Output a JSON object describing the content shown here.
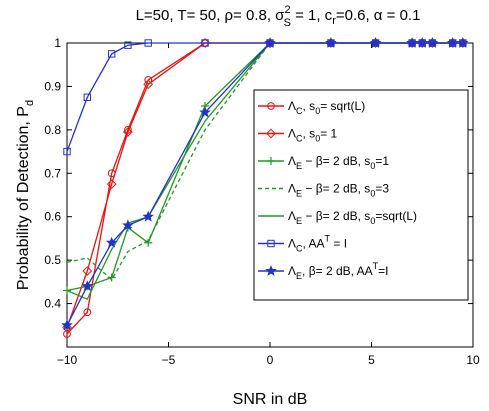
{
  "chart_data": {
    "type": "line",
    "title": "L=50, T= 50, ρ= 0.8, σ",
    "title_sup": "2",
    "title_sub": "S",
    "title_rest": " = 1, c",
    "title_sub2": "r",
    "title_end": "=0.6, α = 0.1",
    "xlabel": "SNR in dB",
    "ylabel": "Probability of Detection, P",
    "ylabel_sub": "d",
    "xlim": [
      -10,
      10
    ],
    "ylim": [
      0.3,
      1.0
    ],
    "grid": false,
    "legend_position": "middle-right",
    "xticks": [
      -10,
      -5,
      0,
      5,
      10
    ],
    "yticks": [
      0.4,
      0.5,
      0.6,
      0.7,
      0.8,
      0.9,
      1
    ],
    "series": [
      {
        "name": "Λ",
        "sub": "C",
        "rest": ", s",
        "sub2": "0",
        "rest2": "= sqrt(L)",
        "color": "#ee1111",
        "marker": "circle",
        "dash": "solid",
        "x": [
          -10,
          -9,
          -7.8,
          -7,
          -6,
          -3.2,
          0,
          3,
          5.2,
          7,
          7.5,
          8,
          9,
          9.5
        ],
        "y": [
          0.33,
          0.38,
          0.7,
          0.8,
          0.915,
          1,
          1,
          1,
          1,
          1,
          1,
          1,
          1,
          1
        ]
      },
      {
        "name": "Λ",
        "sub": "C",
        "rest": ", s",
        "sub2": "0",
        "rest2": "= 1",
        "color": "#ee1111",
        "marker": "diamond",
        "dash": "solid",
        "x": [
          -10,
          -9,
          -7.8,
          -7,
          -6,
          -3.2,
          0,
          3,
          5.2,
          7,
          7.5,
          8,
          9,
          9.5
        ],
        "y": [
          0.345,
          0.475,
          0.675,
          0.795,
          0.905,
          1,
          1,
          1,
          1,
          1,
          1,
          1,
          1,
          1
        ]
      },
      {
        "name": "Λ",
        "sub": "E",
        "rest": " −  β= 2 dB, s",
        "sub2": "0",
        "rest2": "=1",
        "color": "#229922",
        "marker": "plus",
        "dash": "solid",
        "x": [
          -10,
          -9,
          -7.8,
          -7,
          -6,
          -3.2,
          0,
          3,
          5.2,
          7,
          7.5,
          8,
          9,
          9.5
        ],
        "y": [
          0.43,
          0.44,
          0.46,
          0.575,
          0.54,
          0.855,
          1,
          1,
          1,
          1,
          1,
          1,
          1,
          1
        ]
      },
      {
        "name": "Λ",
        "sub": "E",
        "rest": " − β= 2 dB, s",
        "sub2": "0",
        "rest2": "=3",
        "color": "#229922",
        "marker": "none",
        "dash": "dashed",
        "x": [
          -10,
          -9,
          -7.8,
          -7,
          -6,
          -3.2,
          0,
          3,
          5.2,
          7,
          7.5,
          8,
          9,
          9.5
        ],
        "y": [
          0.495,
          0.505,
          0.455,
          0.52,
          0.545,
          0.8,
          1,
          1,
          1,
          1,
          1,
          1,
          1,
          1
        ]
      },
      {
        "name": "Λ",
        "sub": "E",
        "rest": " − β= 2 dB, s",
        "sub2": "0",
        "rest2": "=sqrt(L)",
        "color": "#229922",
        "marker": "none",
        "dash": "solid",
        "x": [
          -10,
          -9,
          -7.8,
          -7,
          -6,
          -3.2,
          0,
          3,
          5.2,
          7,
          7.5,
          8,
          9,
          9.5
        ],
        "y": [
          0.43,
          0.41,
          0.525,
          0.585,
          0.6,
          0.82,
          1,
          1,
          1,
          1,
          1,
          1,
          1,
          1
        ]
      },
      {
        "name": "Λ",
        "sub": "C",
        "rest": ", AA",
        "sup": "T",
        "rest2": " = I",
        "color": "#2233cc",
        "marker": "square",
        "dash": "solid",
        "x": [
          -10,
          -9,
          -7.8,
          -7,
          -6,
          -3.2,
          0,
          3,
          5.2,
          7,
          7.5,
          8,
          9,
          9.5
        ],
        "y": [
          0.75,
          0.875,
          0.975,
          0.995,
          1,
          1,
          1,
          1,
          1,
          1,
          1,
          1,
          1,
          1
        ]
      },
      {
        "name": "Λ",
        "sub": "E",
        "rest": ", β= 2 dB, AA",
        "sup": "T",
        "rest2": "=I",
        "color": "#2233cc",
        "marker": "star",
        "dash": "solid",
        "x": [
          -10,
          -9,
          -7.8,
          -7,
          -6,
          -3.2,
          0,
          3,
          5.2,
          7,
          7.5,
          8,
          9,
          9.5
        ],
        "y": [
          0.35,
          0.44,
          0.54,
          0.58,
          0.6,
          0.84,
          1,
          1,
          1,
          1,
          1,
          1,
          1,
          1
        ]
      }
    ]
  }
}
